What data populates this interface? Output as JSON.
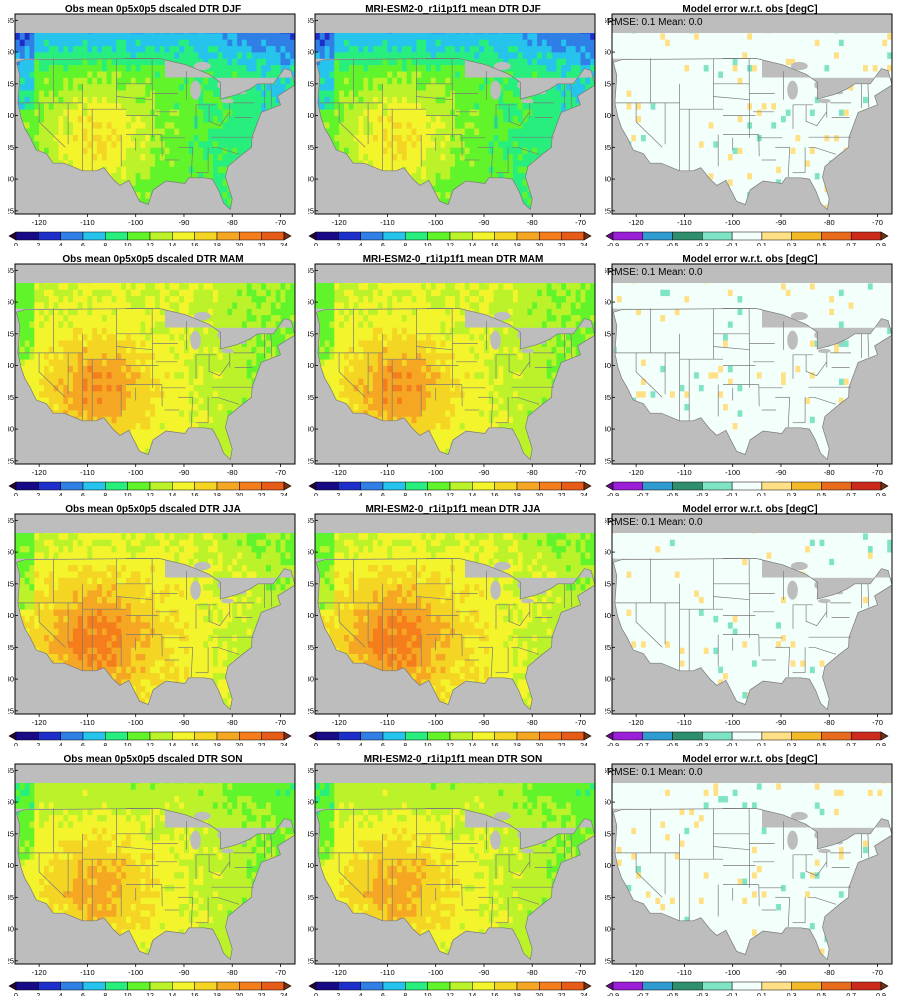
{
  "chart_data": [
    {
      "type": "heatmap",
      "title": "Obs mean 0p5x0p5 dscaled DTR DJF",
      "row": 0,
      "col": 0,
      "kind": "obs",
      "season": "DJF"
    },
    {
      "type": "heatmap",
      "title": "MRI-ESM2-0_r1i1p1f1 mean DTR DJF",
      "row": 0,
      "col": 1,
      "kind": "model",
      "season": "DJF"
    },
    {
      "type": "heatmap",
      "title": "Model error w.r.t. obs [degC]",
      "row": 0,
      "col": 2,
      "kind": "error",
      "season": "DJF",
      "stats": "RMSE: 0.1   Mean: 0.0"
    },
    {
      "type": "heatmap",
      "title": "Obs mean 0p5x0p5 dscaled DTR MAM",
      "row": 1,
      "col": 0,
      "kind": "obs",
      "season": "MAM"
    },
    {
      "type": "heatmap",
      "title": "MRI-ESM2-0_r1i1p1f1 mean DTR MAM",
      "row": 1,
      "col": 1,
      "kind": "model",
      "season": "MAM"
    },
    {
      "type": "heatmap",
      "title": "Model error w.r.t. obs [degC]",
      "row": 1,
      "col": 2,
      "kind": "error",
      "season": "MAM",
      "stats": "RMSE: 0.1   Mean: 0.0"
    },
    {
      "type": "heatmap",
      "title": "Obs mean 0p5x0p5 dscaled DTR JJA",
      "row": 2,
      "col": 0,
      "kind": "obs",
      "season": "JJA"
    },
    {
      "type": "heatmap",
      "title": "MRI-ESM2-0_r1i1p1f1 mean DTR JJA",
      "row": 2,
      "col": 1,
      "kind": "model",
      "season": "JJA"
    },
    {
      "type": "heatmap",
      "title": "Model error w.r.t. obs [degC]",
      "row": 2,
      "col": 2,
      "kind": "error",
      "season": "JJA",
      "stats": "RMSE: 0.1   Mean: 0.0"
    },
    {
      "type": "heatmap",
      "title": "Obs mean 0p5x0p5 dscaled DTR SON",
      "row": 3,
      "col": 0,
      "kind": "obs",
      "season": "SON"
    },
    {
      "type": "heatmap",
      "title": "MRI-ESM2-0_r1i1p1f1 mean DTR SON",
      "row": 3,
      "col": 1,
      "kind": "model",
      "season": "SON"
    },
    {
      "type": "heatmap",
      "title": "Model error w.r.t. obs [degC]",
      "row": 3,
      "col": 2,
      "kind": "error",
      "season": "SON",
      "stats": "RMSE: 0.1   Mean: 0.0"
    }
  ],
  "axes": {
    "xlim": [
      -125,
      -67
    ],
    "ylim": [
      24.5,
      56
    ],
    "xticks": [
      -120,
      -110,
      -100,
      -90,
      -80,
      -70
    ],
    "yticks": [
      25,
      30,
      35,
      40,
      45,
      50,
      55
    ]
  },
  "colorbar_mean": {
    "labels": [
      "0",
      "2",
      "4",
      "6",
      "8",
      "10",
      "12",
      "14",
      "16",
      "18",
      "20",
      "22",
      "24"
    ],
    "colors": [
      "#250433",
      "#180a86",
      "#1d2fc8",
      "#2f7fe6",
      "#26c4ec",
      "#27ee7c",
      "#62f42b",
      "#bbf22a",
      "#f3f42b",
      "#f5d524",
      "#f5a623",
      "#f57d1b",
      "#e65b18",
      "#7b2e10"
    ]
  },
  "colorbar_error": {
    "labels": [
      "-0.9",
      "-0.7",
      "-0.5",
      "-0.3",
      "-0.1",
      "0.1",
      "0.3",
      "0.5",
      "0.7",
      "0.9"
    ],
    "colors": [
      "#6a0a8a",
      "#9b1fd6",
      "#2f9bd1",
      "#2e8f6d",
      "#7fe3c6",
      "#f2fffb",
      "#ffe084",
      "#f3b928",
      "#e86a1c",
      "#cc2a1a",
      "#6e3310"
    ]
  },
  "colors": {
    "land_mask": "#bdbdbd",
    "border": "#7a7a7a"
  }
}
